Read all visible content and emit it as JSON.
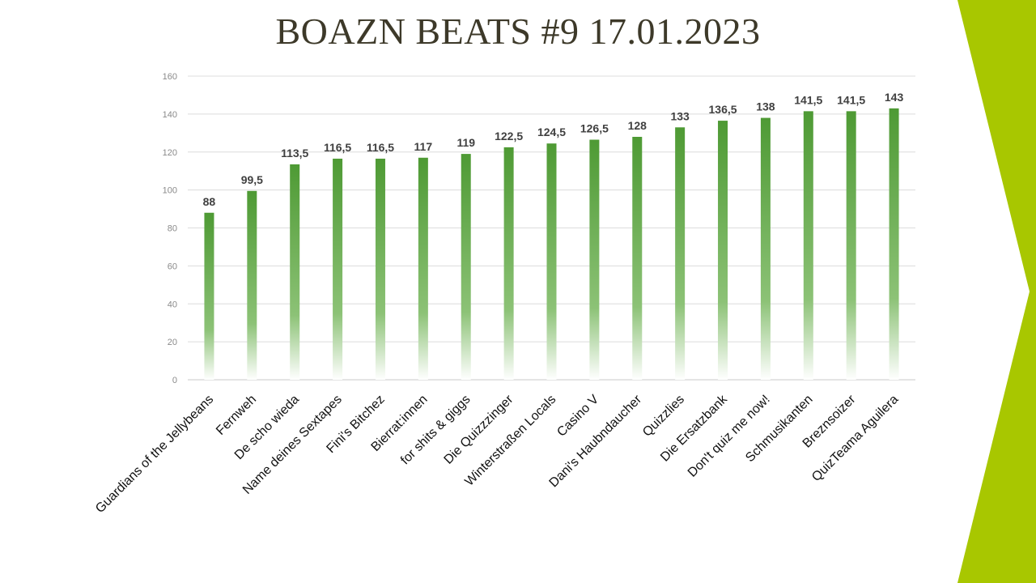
{
  "slide": {
    "accent_color": "#a8c700",
    "title_color": "#3d3929"
  },
  "chart_data": {
    "type": "bar",
    "title": "BOAZN BEATS #9 17.01.2023",
    "categories": [
      "Guardians of the Jellybeans",
      "Fernweh",
      "De scho wieda",
      "Name deines Sextapes",
      "Fini's Bitchez",
      "Bierrat:innen",
      "for shits & giggs",
      "Die Quizzzinger",
      "Winterstraßen Locals",
      "Casino V",
      "Dani's Haubndaucher",
      "Quizzlies",
      "Die Ersatzbank",
      "Don't quiz me now!",
      "Schmusikanten",
      "Breznsoizer",
      "QuizTeama Aguilera"
    ],
    "values": [
      88,
      99.5,
      113.5,
      116.5,
      116.5,
      117,
      119,
      122.5,
      124.5,
      126.5,
      128,
      133,
      136.5,
      138,
      141.5,
      141.5,
      143
    ],
    "value_labels": [
      "88",
      "99,5",
      "113,5",
      "116,5",
      "116,5",
      "117",
      "119",
      "122,5",
      "124,5",
      "126,5",
      "128",
      "133",
      "136,5",
      "138",
      "141,5",
      "141,5",
      "143"
    ],
    "ylim": [
      0,
      160
    ],
    "yticks": [
      0,
      20,
      40,
      60,
      80,
      100,
      120,
      140,
      160
    ],
    "grid": true,
    "bar_color": "#4e9a34",
    "xlabel": "",
    "ylabel": ""
  }
}
